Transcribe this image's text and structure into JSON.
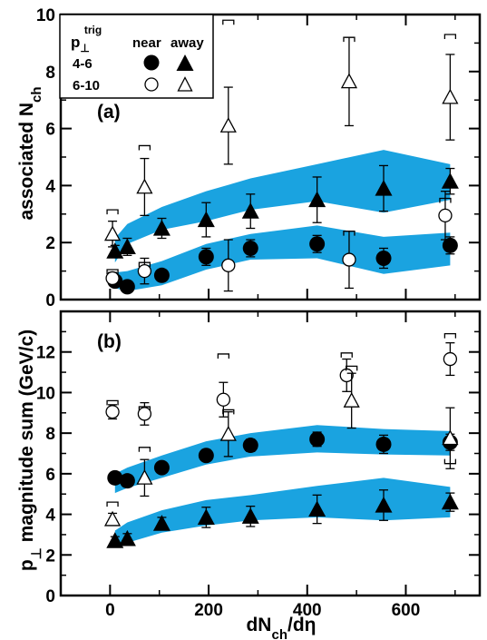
{
  "legend": {
    "header_symbol": "p",
    "header_sub": "⊥",
    "header_sup": "trig",
    "col_near": "near",
    "col_away": "away",
    "rows": [
      {
        "label": "4-6",
        "filled": true
      },
      {
        "label": "6-10",
        "filled": false
      }
    ]
  },
  "colors": {
    "band": "#1aa3e0",
    "marker": "#000000",
    "background": "#ffffff"
  },
  "chart_data": [
    {
      "type": "scatter",
      "panel_label": "(a)",
      "ylabel_main": "associated N",
      "ylabel_sub": "ch",
      "xlim": [
        -100,
        750
      ],
      "ylim": [
        0,
        10
      ],
      "yticks": [
        0,
        2,
        4,
        6,
        8,
        10
      ],
      "bands": [
        {
          "x": [
            10,
            35,
            105,
            195,
            285,
            420,
            555,
            690
          ],
          "lo": [
            1.3,
            1.95,
            2.45,
            2.75,
            3.15,
            3.45,
            3.05,
            3.5
          ],
          "hi": [
            2.15,
            2.65,
            3.25,
            3.8,
            4.25,
            4.75,
            5.25,
            4.75
          ]
        },
        {
          "x": [
            10,
            35,
            105,
            195,
            285,
            420,
            555,
            690
          ],
          "lo": [
            0.4,
            0.3,
            0.5,
            1.05,
            1.4,
            1.45,
            0.9,
            1.2
          ],
          "hi": [
            0.95,
            1.0,
            1.35,
            1.95,
            2.3,
            2.6,
            2.2,
            2.35
          ]
        }
      ],
      "series": [
        {
          "name": "4-6 near",
          "marker": "circle",
          "filled": true,
          "x": [
            10,
            35,
            105,
            195,
            285,
            420,
            555,
            690
          ],
          "y": [
            0.65,
            0.45,
            0.85,
            1.5,
            1.8,
            1.95,
            1.45,
            1.9
          ],
          "err": [
            0.1,
            0.1,
            0.15,
            0.3,
            0.3,
            0.3,
            0.35,
            0.3
          ]
        },
        {
          "name": "4-6 away",
          "marker": "triangle",
          "filled": true,
          "x": [
            10,
            35,
            105,
            195,
            285,
            420,
            555,
            690
          ],
          "y": [
            1.7,
            1.85,
            2.5,
            2.8,
            3.1,
            3.5,
            3.9,
            4.15
          ],
          "err": [
            0.2,
            0.3,
            0.35,
            0.6,
            0.6,
            0.8,
            0.8,
            0.45
          ]
        },
        {
          "name": "6-10 near",
          "marker": "circle",
          "filled": false,
          "x": [
            5,
            70,
            240,
            485,
            680
          ],
          "y": [
            0.75,
            1.0,
            1.2,
            1.4,
            2.95
          ],
          "err": [
            0.2,
            0.45,
            0.9,
            1.0,
            0.85
          ],
          "sys": [
            1.05,
            1.3,
            0,
            2.4,
            3.55
          ]
        },
        {
          "name": "6-10 away",
          "marker": "triangle",
          "filled": false,
          "x": [
            5,
            70,
            240,
            485,
            690
          ],
          "y": [
            2.3,
            3.95,
            6.1,
            7.65,
            7.1
          ],
          "err": [
            0.45,
            1.0,
            1.35,
            1.55,
            1.5
          ],
          "sys": [
            3.15,
            5.4,
            9.8,
            9.2,
            9.3
          ]
        }
      ]
    },
    {
      "type": "scatter",
      "panel_label": "(b)",
      "ylabel_main": "p",
      "ylabel_sub": "⊥",
      "ylabel_rest": " magnitude sum (GeV/c)",
      "xlabel_main": "dN",
      "xlabel_sub": "ch",
      "xlabel_rest": "/dη",
      "xlim": [
        -100,
        750
      ],
      "xticks": [
        0,
        200,
        400,
        600
      ],
      "ylim": [
        0,
        14
      ],
      "yticks": [
        0,
        2,
        4,
        6,
        8,
        10,
        12
      ],
      "bands": [
        {
          "x": [
            10,
            35,
            105,
            195,
            285,
            420,
            555,
            690
          ],
          "lo": [
            5.05,
            5.3,
            5.8,
            6.45,
            6.85,
            7.05,
            6.95,
            6.9
          ],
          "hi": [
            6.0,
            6.3,
            6.9,
            7.6,
            8.0,
            8.4,
            8.2,
            8.1
          ]
        },
        {
          "x": [
            10,
            35,
            105,
            195,
            285,
            420,
            555,
            690
          ],
          "lo": [
            2.45,
            2.6,
            3.1,
            3.45,
            3.7,
            3.85,
            3.7,
            3.85
          ],
          "hi": [
            3.2,
            3.6,
            4.2,
            4.7,
            4.95,
            5.4,
            5.8,
            5.35
          ]
        }
      ],
      "series": [
        {
          "name": "4-6 near",
          "marker": "circle",
          "filled": true,
          "x": [
            10,
            35,
            105,
            195,
            285,
            420,
            555,
            690
          ],
          "y": [
            5.8,
            5.65,
            6.3,
            6.9,
            7.4,
            7.7,
            7.45,
            7.55
          ],
          "err": [
            0.1,
            0.2,
            0.2,
            0.25,
            0.3,
            0.35,
            0.45,
            0.4
          ]
        },
        {
          "name": "4-6 away",
          "marker": "triangle",
          "filled": true,
          "x": [
            10,
            35,
            105,
            195,
            285,
            420,
            555,
            690
          ],
          "y": [
            2.7,
            2.8,
            3.55,
            3.85,
            3.9,
            4.25,
            4.45,
            4.6
          ],
          "err": [
            0.2,
            0.25,
            0.3,
            0.5,
            0.5,
            0.7,
            0.75,
            0.45
          ]
        },
        {
          "name": "6-10 near",
          "marker": "circle",
          "filled": false,
          "x": [
            5,
            70,
            230,
            480,
            690
          ],
          "y": [
            9.05,
            8.95,
            9.65,
            10.85,
            11.65
          ],
          "err": [
            0.35,
            0.55,
            0.85,
            0.8,
            0.8
          ],
          "sys": [
            9.6,
            9.3,
            11.9,
            11.95,
            12.9
          ]
        },
        {
          "name": "6-10 away",
          "marker": "triangle",
          "filled": false,
          "x": [
            5,
            70,
            240,
            490,
            690
          ],
          "y": [
            3.75,
            5.8,
            7.95,
            9.6,
            7.75
          ],
          "err": [
            0.3,
            0.9,
            1.1,
            1.35,
            1.5
          ],
          "sys": [
            4.6,
            7.3,
            9.15,
            11.3,
            6.5
          ]
        }
      ]
    }
  ]
}
